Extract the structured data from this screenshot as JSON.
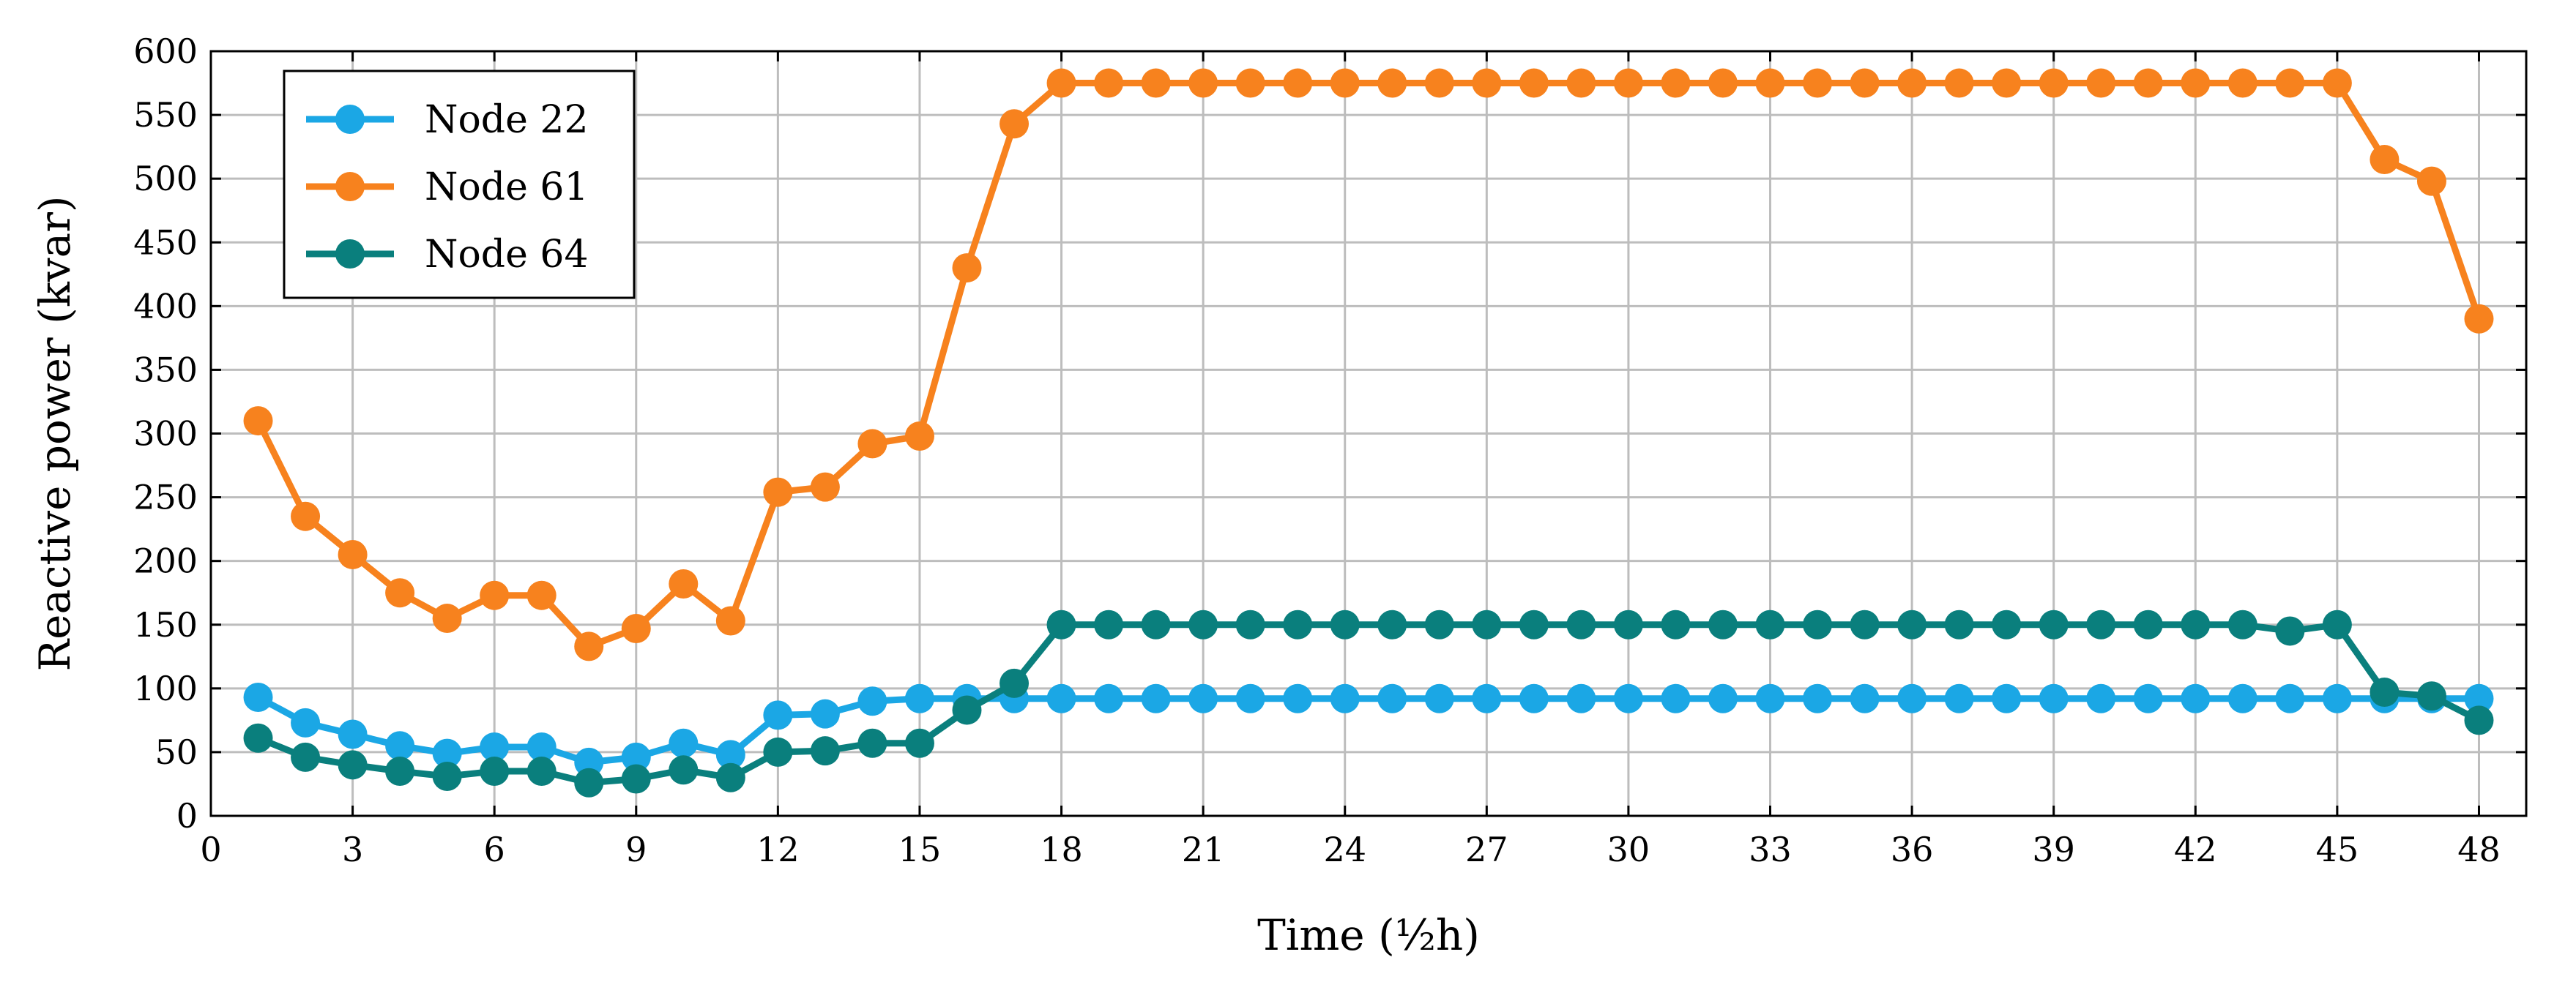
{
  "chart_data": {
    "type": "line",
    "xlabel": "Time (½h)",
    "ylabel": "Reactive power (kvar)",
    "x": [
      1,
      2,
      3,
      4,
      5,
      6,
      7,
      8,
      9,
      10,
      11,
      12,
      13,
      14,
      15,
      16,
      17,
      18,
      19,
      20,
      21,
      22,
      23,
      24,
      25,
      26,
      27,
      28,
      29,
      30,
      31,
      32,
      33,
      34,
      35,
      36,
      37,
      38,
      39,
      40,
      41,
      42,
      43,
      44,
      45,
      46,
      47,
      48
    ],
    "xlim": [
      0,
      49
    ],
    "ylim": [
      0,
      600
    ],
    "xticks": [
      0,
      3,
      6,
      9,
      12,
      15,
      18,
      21,
      24,
      27,
      30,
      33,
      36,
      39,
      42,
      45,
      48
    ],
    "yticks": [
      0,
      50,
      100,
      150,
      200,
      250,
      300,
      350,
      400,
      450,
      500,
      550,
      600
    ],
    "grid": true,
    "legend_position": "top-left",
    "series": [
      {
        "name": "Node 22",
        "color": "#1BA7E5",
        "values": [
          93,
          73,
          64,
          55,
          49,
          54,
          54,
          42,
          46,
          57,
          48,
          79,
          80,
          90,
          92,
          92,
          92,
          92,
          92,
          92,
          92,
          92,
          92,
          92,
          92,
          92,
          92,
          92,
          92,
          92,
          92,
          92,
          92,
          92,
          92,
          92,
          92,
          92,
          92,
          92,
          92,
          92,
          92,
          92,
          92,
          92,
          92,
          92
        ]
      },
      {
        "name": "Node 61",
        "color": "#F7821E",
        "values": [
          310,
          235,
          205,
          175,
          155,
          173,
          173,
          133,
          147,
          182,
          153,
          254,
          258,
          292,
          298,
          430,
          543,
          575,
          575,
          575,
          575,
          575,
          575,
          575,
          575,
          575,
          575,
          575,
          575,
          575,
          575,
          575,
          575,
          575,
          575,
          575,
          575,
          575,
          575,
          575,
          575,
          575,
          575,
          575,
          575,
          515,
          498,
          390
        ]
      },
      {
        "name": "Node 64",
        "color": "#0A7F7D",
        "values": [
          61,
          46,
          40,
          35,
          31,
          35,
          35,
          26,
          29,
          36,
          30,
          50,
          51,
          57,
          57,
          83,
          104,
          150,
          150,
          150,
          150,
          150,
          150,
          150,
          150,
          150,
          150,
          150,
          150,
          150,
          150,
          150,
          150,
          150,
          150,
          150,
          150,
          150,
          150,
          150,
          150,
          150,
          150,
          145,
          150,
          97,
          94,
          75
        ]
      }
    ]
  }
}
